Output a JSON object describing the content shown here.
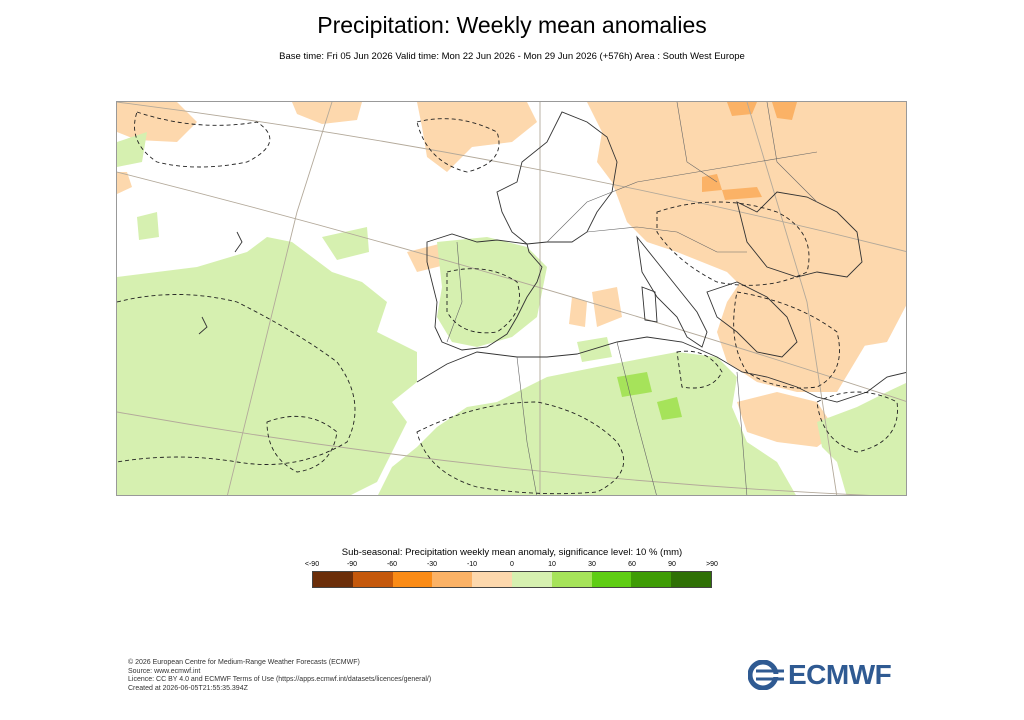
{
  "title": "Precipitation: Weekly mean anomalies",
  "subtitle": "Base time: Fri 05 Jun 2026 Valid time: Mon 22 Jun 2026 - Mon 29 Jun 2026 (+576h) Area : South West Europe",
  "legend": {
    "title": "Sub-seasonal: Precipitation weekly mean anomaly, significance level: 10 % (mm)",
    "ticks": [
      "<-90",
      "-90",
      "-60",
      "-30",
      "-10",
      "0",
      "10",
      "30",
      "60",
      "90",
      ">90"
    ],
    "colors": [
      "#6b2e0a",
      "#c4580c",
      "#fa8b16",
      "#fbb266",
      "#fdd8ad",
      "#d6f0b0",
      "#a6e35a",
      "#5fcd14",
      "#3f9c06",
      "#2f7006"
    ]
  },
  "footer": {
    "lines": [
      "© 2026 European Centre for Medium-Range Weather Forecasts (ECMWF)",
      "Source: www.ecmwf.int",
      "Licence: CC BY 4.0 and ECMWF Terms of Use (https://apps.ecmwf.int/datasets/licences/general/)",
      "Created at 2026-06-05T21:55:35.394Z"
    ]
  },
  "logo": {
    "text": "ECMWF",
    "icon": "ecmwf-logo-icon"
  },
  "map_colors": {
    "dry": "#fdd8ad",
    "dry_strong": "#fbb266",
    "wet": "#d6f0b0",
    "wet_strong": "#a6e35a",
    "grid": "#b3a99a",
    "coast": "#333333",
    "border": "#666666"
  }
}
